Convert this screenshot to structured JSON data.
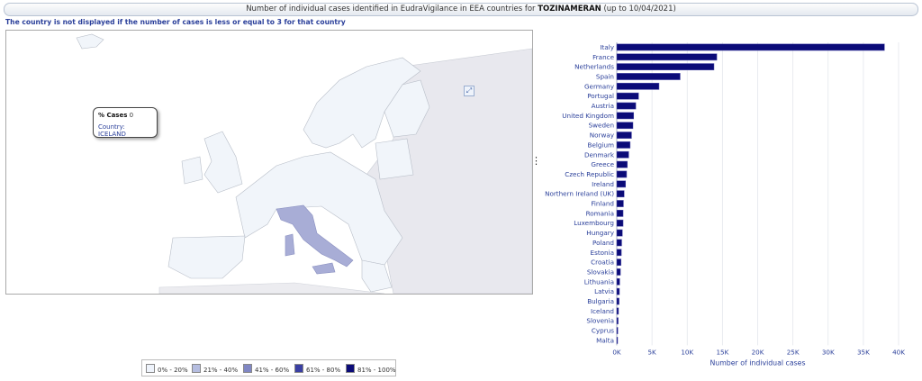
{
  "header": {
    "title_prefix": "Number of individual cases identified in EudraVigilance in EEA countries for ",
    "title_product": "TOZINAMERAN",
    "title_suffix": " (up to 10/04/2021)"
  },
  "subtitle": "The country is not displayed if the number of cases is less or equal to 3 for that country",
  "map": {
    "tooltip": {
      "label": "% Cases",
      "value": "0",
      "country_label": "Country:",
      "country_value": "ICELAND"
    },
    "colors": {
      "sea": "#ffffff",
      "land_default": "#f1f5fa",
      "land_border": "#b8bec8",
      "italy": "#a8add6",
      "non_eea": "#e8e8ee"
    }
  },
  "legend": {
    "items": [
      {
        "label": "0% - 20%",
        "color": "#eef3fb"
      },
      {
        "label": "21% - 40%",
        "color": "#b5bde0"
      },
      {
        "label": "41% - 60%",
        "color": "#8087c4"
      },
      {
        "label": "61% - 80%",
        "color": "#3a3fa3"
      },
      {
        "label": "81% - 100%",
        "color": "#0b0b78"
      }
    ]
  },
  "chart_data": {
    "type": "bar",
    "orientation": "horizontal",
    "categories": [
      "Italy",
      "France",
      "Netherlands",
      "Spain",
      "Germany",
      "Portugal",
      "Austria",
      "United Kingdom",
      "Sweden",
      "Norway",
      "Belgium",
      "Denmark",
      "Greece",
      "Czech Republic",
      "Ireland",
      "Northern Ireland (UK)",
      "Finland",
      "Romania",
      "Luxembourg",
      "Hungary",
      "Poland",
      "Estonia",
      "Croatia",
      "Slovakia",
      "Lithuania",
      "Latvia",
      "Bulgaria",
      "Iceland",
      "Slovenia",
      "Cyprus",
      "Malta"
    ],
    "values": [
      38000,
      14200,
      13800,
      9000,
      6000,
      3100,
      2700,
      2400,
      2300,
      2100,
      1900,
      1700,
      1500,
      1400,
      1250,
      1050,
      950,
      900,
      900,
      800,
      700,
      650,
      600,
      520,
      420,
      380,
      330,
      250,
      200,
      150,
      100
    ],
    "xlabel": "Number of individual cases",
    "xlim": [
      0,
      40000
    ],
    "xticks": [
      "0K",
      "5K",
      "10K",
      "15K",
      "20K",
      "25K",
      "30K",
      "35K",
      "40K"
    ],
    "bar_color": "#0b0b78",
    "grid": true
  }
}
